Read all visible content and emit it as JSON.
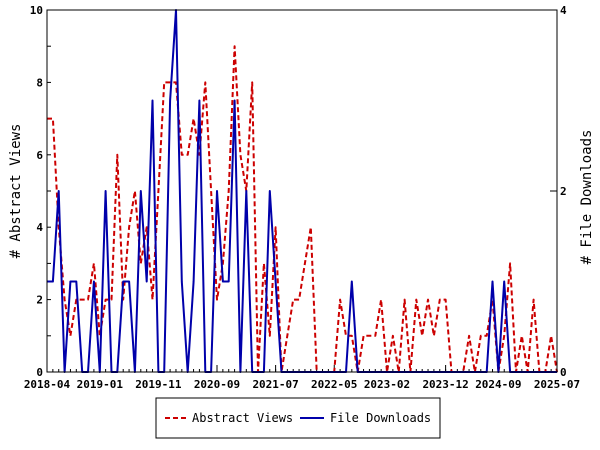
{
  "chart_data": {
    "type": "line",
    "title": "",
    "xlabel": "",
    "ylabel": "# Abstract Views",
    "y2label": "# File Downloads",
    "ylim": [
      0,
      10
    ],
    "y2lim": [
      0,
      4
    ],
    "yticks": [
      "0",
      "2",
      "4",
      "6",
      "8",
      "10"
    ],
    "y2ticks": [
      "0",
      "2",
      "4"
    ],
    "xticks": [
      "2018-04",
      "2019-01",
      "2019-11",
      "2020-09",
      "2021-07",
      "2022-05",
      "2023-02",
      "2023-12",
      "2024-09",
      "2025-07"
    ],
    "x_start": "2018-04",
    "x_end": "2025-07",
    "legend_position": "bottom-center",
    "series": [
      {
        "name": "Abstract Views",
        "axis": "left",
        "color": "#cc0000",
        "style": "dashed",
        "points": [
          [
            "2018-04",
            7
          ],
          [
            "2018-05",
            7
          ],
          [
            "2018-06",
            4
          ],
          [
            "2018-07",
            2
          ],
          [
            "2018-08",
            1
          ],
          [
            "2018-09",
            2
          ],
          [
            "2018-10",
            2
          ],
          [
            "2018-11",
            2
          ],
          [
            "2018-12",
            3
          ],
          [
            "2019-01",
            1
          ],
          [
            "2019-02",
            2
          ],
          [
            "2019-03",
            2
          ],
          [
            "2019-04",
            6
          ],
          [
            "2019-05",
            2
          ],
          [
            "2019-06",
            4
          ],
          [
            "2019-07",
            5
          ],
          [
            "2019-08",
            3
          ],
          [
            "2019-09",
            4
          ],
          [
            "2019-10",
            2
          ],
          [
            "2019-11",
            5
          ],
          [
            "2019-12",
            8
          ],
          [
            "2020-01",
            8
          ],
          [
            "2020-02",
            8
          ],
          [
            "2020-03",
            6
          ],
          [
            "2020-04",
            6
          ],
          [
            "2020-05",
            7
          ],
          [
            "2020-06",
            6
          ],
          [
            "2020-07",
            8
          ],
          [
            "2020-08",
            5
          ],
          [
            "2020-09",
            2
          ],
          [
            "2020-10",
            3
          ],
          [
            "2020-11",
            5
          ],
          [
            "2020-12",
            9
          ],
          [
            "2021-01",
            6
          ],
          [
            "2021-02",
            5
          ],
          [
            "2021-03",
            8
          ],
          [
            "2021-04",
            0
          ],
          [
            "2021-05",
            3
          ],
          [
            "2021-06",
            1
          ],
          [
            "2021-07",
            4
          ],
          [
            "2021-08",
            0
          ],
          [
            "2021-09",
            1
          ],
          [
            "2021-10",
            2
          ],
          [
            "2021-11",
            2
          ],
          [
            "2021-12",
            3
          ],
          [
            "2022-01",
            4
          ],
          [
            "2022-02",
            0
          ],
          [
            "2022-03",
            0
          ],
          [
            "2022-04",
            0
          ],
          [
            "2022-05",
            0
          ],
          [
            "2022-06",
            2
          ],
          [
            "2022-07",
            1
          ],
          [
            "2022-08",
            1
          ],
          [
            "2022-09",
            0
          ],
          [
            "2022-10",
            1
          ],
          [
            "2022-11",
            1
          ],
          [
            "2022-12",
            1
          ],
          [
            "2023-01",
            2
          ],
          [
            "2023-02",
            0
          ],
          [
            "2023-03",
            1
          ],
          [
            "2023-04",
            0
          ],
          [
            "2023-05",
            2
          ],
          [
            "2023-06",
            0
          ],
          [
            "2023-07",
            2
          ],
          [
            "2023-08",
            1
          ],
          [
            "2023-09",
            2
          ],
          [
            "2023-10",
            1
          ],
          [
            "2023-11",
            2
          ],
          [
            "2023-12",
            2
          ],
          [
            "2024-01",
            0
          ],
          [
            "2024-02",
            0
          ],
          [
            "2024-03",
            0
          ],
          [
            "2024-04",
            1
          ],
          [
            "2024-05",
            0
          ],
          [
            "2024-06",
            1
          ],
          [
            "2024-07",
            1
          ],
          [
            "2024-08",
            2
          ],
          [
            "2024-09",
            0
          ],
          [
            "2024-10",
            1
          ],
          [
            "2024-11",
            3
          ],
          [
            "2024-12",
            0
          ],
          [
            "2025-01",
            1
          ],
          [
            "2025-02",
            0
          ],
          [
            "2025-03",
            2
          ],
          [
            "2025-04",
            0
          ],
          [
            "2025-05",
            0
          ],
          [
            "2025-06",
            1
          ],
          [
            "2025-07",
            0
          ]
        ]
      },
      {
        "name": "File Downloads",
        "axis": "right",
        "color": "#0000aa",
        "style": "solid",
        "points": [
          [
            "2018-04",
            1
          ],
          [
            "2018-05",
            1
          ],
          [
            "2018-06",
            2
          ],
          [
            "2018-07",
            0
          ],
          [
            "2018-08",
            1
          ],
          [
            "2018-09",
            1
          ],
          [
            "2018-10",
            0
          ],
          [
            "2018-11",
            0
          ],
          [
            "2018-12",
            1
          ],
          [
            "2019-01",
            0
          ],
          [
            "2019-02",
            2
          ],
          [
            "2019-03",
            0
          ],
          [
            "2019-04",
            0
          ],
          [
            "2019-05",
            1
          ],
          [
            "2019-06",
            1
          ],
          [
            "2019-07",
            0
          ],
          [
            "2019-08",
            2
          ],
          [
            "2019-09",
            1
          ],
          [
            "2019-10",
            3
          ],
          [
            "2019-11",
            0
          ],
          [
            "2019-12",
            0
          ],
          [
            "2020-01",
            3
          ],
          [
            "2020-02",
            4
          ],
          [
            "2020-03",
            1
          ],
          [
            "2020-04",
            0
          ],
          [
            "2020-05",
            1
          ],
          [
            "2020-06",
            3
          ],
          [
            "2020-07",
            0
          ],
          [
            "2020-08",
            0
          ],
          [
            "2020-09",
            2
          ],
          [
            "2020-10",
            1
          ],
          [
            "2020-11",
            1
          ],
          [
            "2020-12",
            3
          ],
          [
            "2021-01",
            0
          ],
          [
            "2021-02",
            2
          ],
          [
            "2021-03",
            0
          ],
          [
            "2021-04",
            0
          ],
          [
            "2021-05",
            0
          ],
          [
            "2021-06",
            2
          ],
          [
            "2021-07",
            1
          ],
          [
            "2021-08",
            0
          ],
          [
            "2021-09",
            0
          ],
          [
            "2021-10",
            0
          ],
          [
            "2021-11",
            0
          ],
          [
            "2021-12",
            0
          ],
          [
            "2022-01",
            0
          ],
          [
            "2022-02",
            0
          ],
          [
            "2022-03",
            0
          ],
          [
            "2022-04",
            0
          ],
          [
            "2022-05",
            0
          ],
          [
            "2022-06",
            0
          ],
          [
            "2022-07",
            0
          ],
          [
            "2022-08",
            1
          ],
          [
            "2022-09",
            0
          ],
          [
            "2022-10",
            0
          ],
          [
            "2022-11",
            0
          ],
          [
            "2022-12",
            0
          ],
          [
            "2023-01",
            0
          ],
          [
            "2023-02",
            0
          ],
          [
            "2023-03",
            0
          ],
          [
            "2023-04",
            0
          ],
          [
            "2023-05",
            0
          ],
          [
            "2023-06",
            0
          ],
          [
            "2023-07",
            0
          ],
          [
            "2023-08",
            0
          ],
          [
            "2023-09",
            0
          ],
          [
            "2023-10",
            0
          ],
          [
            "2023-11",
            0
          ],
          [
            "2023-12",
            0
          ],
          [
            "2024-01",
            0
          ],
          [
            "2024-02",
            0
          ],
          [
            "2024-03",
            0
          ],
          [
            "2024-04",
            0
          ],
          [
            "2024-05",
            0
          ],
          [
            "2024-06",
            0
          ],
          [
            "2024-07",
            0
          ],
          [
            "2024-08",
            1
          ],
          [
            "2024-09",
            0
          ],
          [
            "2024-10",
            1
          ],
          [
            "2024-11",
            0
          ],
          [
            "2024-12",
            0
          ],
          [
            "2025-01",
            0
          ],
          [
            "2025-02",
            0
          ],
          [
            "2025-03",
            0
          ],
          [
            "2025-04",
            0
          ],
          [
            "2025-05",
            0
          ],
          [
            "2025-06",
            0
          ],
          [
            "2025-07",
            0
          ]
        ]
      }
    ],
    "grid": false
  }
}
